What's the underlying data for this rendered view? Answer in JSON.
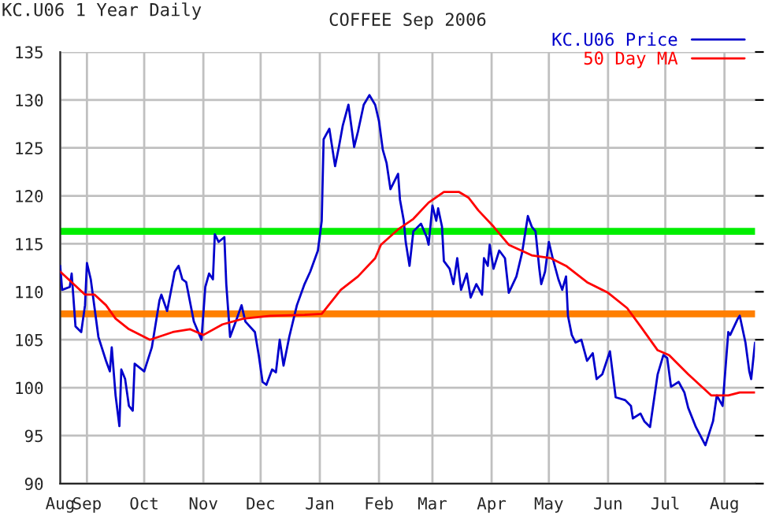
{
  "chart_data": {
    "type": "line",
    "title": "COFFEE Sep 2006",
    "annotations": [
      "KC.U06 1 Year Daily"
    ],
    "series": [
      {
        "name": "KC.U06 Price",
        "color": "#0000cc",
        "x": [
          "2005-08-18",
          "2005-08-19",
          "2005-08-23",
          "2005-08-24",
          "2005-08-26",
          "2005-08-29",
          "2005-08-31",
          "2005-09-01",
          "2005-09-03",
          "2005-09-07",
          "2005-09-11",
          "2005-09-13",
          "2005-09-14",
          "2005-09-16",
          "2005-09-18",
          "2005-09-19",
          "2005-09-21",
          "2005-09-23",
          "2005-09-25",
          "2005-09-26",
          "2005-10-01",
          "2005-10-05",
          "2005-10-09",
          "2005-10-10",
          "2005-10-13",
          "2005-10-17",
          "2005-10-19",
          "2005-10-21",
          "2005-10-23",
          "2005-10-27",
          "2005-10-31",
          "2005-11-02",
          "2005-11-04",
          "2005-11-06",
          "2005-11-07",
          "2005-11-09",
          "2005-11-12",
          "2005-11-13",
          "2005-11-15",
          "2005-11-18",
          "2005-11-21",
          "2005-11-23",
          "2005-11-28",
          "2005-11-30",
          "2005-12-02",
          "2005-12-04",
          "2005-12-07",
          "2005-12-09",
          "2005-12-11",
          "2005-12-13",
          "2005-12-16",
          "2005-12-20",
          "2005-12-24",
          "2005-12-27",
          "2005-12-31",
          "2006-01-02",
          "2006-01-03",
          "2006-01-06",
          "2006-01-09",
          "2006-01-11",
          "2006-01-13",
          "2006-01-16",
          "2006-01-19",
          "2006-01-21",
          "2006-01-24",
          "2006-01-27",
          "2006-01-30",
          "2006-02-01",
          "2006-02-03",
          "2006-02-05",
          "2006-02-07",
          "2006-02-09",
          "2006-02-11",
          "2006-02-12",
          "2006-02-14",
          "2006-02-15",
          "2006-02-17",
          "2006-02-19",
          "2006-02-23",
          "2006-02-26",
          "2006-02-27",
          "2006-03-01",
          "2006-03-03",
          "2006-03-04",
          "2006-03-06",
          "2006-03-07",
          "2006-03-10",
          "2006-03-12",
          "2006-03-14",
          "2006-03-16",
          "2006-03-19",
          "2006-03-21",
          "2006-03-24",
          "2006-03-27",
          "2006-03-28",
          "2006-03-30",
          "2006-03-31",
          "2006-04-02",
          "2006-04-05",
          "2006-04-08",
          "2006-04-10",
          "2006-04-14",
          "2006-04-17",
          "2006-04-20",
          "2006-04-22",
          "2006-04-24",
          "2006-04-26",
          "2006-04-27",
          "2006-04-29",
          "2006-05-01",
          "2006-05-03",
          "2006-05-06",
          "2006-05-08",
          "2006-05-10",
          "2006-05-11",
          "2006-05-13",
          "2006-05-15",
          "2006-05-18",
          "2006-05-21",
          "2006-05-24",
          "2006-05-26",
          "2006-05-29",
          "2006-06-02",
          "2006-06-05",
          "2006-06-10",
          "2006-06-13",
          "2006-06-14",
          "2006-06-18",
          "2006-06-20",
          "2006-06-23",
          "2006-06-27",
          "2006-06-30",
          "2006-07-02",
          "2006-07-04",
          "2006-07-08",
          "2006-07-11",
          "2006-07-13",
          "2006-07-17",
          "2006-07-22",
          "2006-07-26",
          "2006-07-28",
          "2006-07-31",
          "2006-08-03",
          "2006-08-04",
          "2006-08-08",
          "2006-08-09",
          "2006-08-12",
          "2006-08-14",
          "2006-08-15",
          "2006-08-17"
        ],
        "values": [
          112.7,
          110.2,
          110.5,
          111.9,
          106.4,
          105.8,
          108.6,
          113.0,
          111.3,
          105.3,
          102.8,
          101.7,
          104.2,
          99.2,
          96.0,
          101.9,
          100.9,
          98.1,
          97.6,
          102.5,
          101.7,
          104.2,
          109.1,
          109.7,
          108.0,
          112.1,
          112.7,
          111.3,
          111.0,
          106.9,
          105.0,
          110.5,
          111.9,
          111.3,
          116.0,
          115.2,
          115.7,
          110.8,
          105.3,
          106.9,
          108.6,
          106.9,
          105.8,
          103.4,
          100.6,
          100.3,
          101.9,
          101.6,
          105.0,
          102.3,
          105.3,
          108.6,
          110.8,
          112.1,
          114.3,
          117.4,
          125.9,
          127.0,
          123.1,
          125.1,
          127.3,
          129.5,
          125.1,
          126.7,
          129.5,
          130.5,
          129.5,
          127.8,
          124.8,
          123.4,
          120.7,
          121.5,
          122.3,
          119.6,
          117.4,
          115.2,
          112.7,
          116.3,
          117.1,
          115.7,
          114.9,
          119.0,
          117.4,
          118.7,
          116.8,
          113.2,
          112.4,
          110.8,
          113.5,
          110.2,
          111.9,
          109.4,
          110.8,
          109.7,
          113.5,
          112.7,
          114.9,
          112.4,
          114.3,
          113.5,
          109.9,
          111.6,
          114.1,
          117.9,
          116.8,
          116.3,
          112.4,
          110.8,
          112.1,
          115.2,
          113.5,
          111.3,
          110.2,
          111.6,
          107.5,
          105.5,
          104.7,
          105.0,
          102.8,
          103.6,
          100.9,
          101.4,
          103.8,
          99.0,
          98.7,
          98.1,
          96.8,
          97.3,
          96.5,
          95.9,
          101.4,
          103.4,
          103.1,
          100.1,
          100.6,
          99.5,
          97.9,
          95.9,
          94.0,
          96.5,
          99.2,
          98.1,
          105.8,
          105.5,
          107.2,
          107.5,
          104.7,
          101.7,
          100.9,
          104.7
        ]
      },
      {
        "name": "50 Day MA",
        "color": "#ff0000",
        "x": [
          "2005-08-18",
          "2005-08-24",
          "2005-08-31",
          "2005-09-05",
          "2005-09-11",
          "2005-09-16",
          "2005-09-23",
          "2005-10-04",
          "2005-10-16",
          "2005-10-25",
          "2005-11-01",
          "2005-11-11",
          "2005-11-22",
          "2005-12-06",
          "2005-12-24",
          "2006-01-02",
          "2006-01-12",
          "2006-01-21",
          "2006-01-30",
          "2006-02-02",
          "2006-02-11",
          "2006-02-19",
          "2006-02-27",
          "2006-03-07",
          "2006-03-15",
          "2006-03-20",
          "2006-03-25",
          "2006-04-02",
          "2006-04-10",
          "2006-04-22",
          "2006-05-02",
          "2006-05-10",
          "2006-05-21",
          "2006-06-01",
          "2006-06-11",
          "2006-06-18",
          "2006-06-27",
          "2006-07-03",
          "2006-07-13",
          "2006-07-25",
          "2006-08-03",
          "2006-08-09",
          "2006-08-17"
        ],
        "values": [
          112.1,
          111.0,
          109.7,
          109.7,
          108.6,
          107.2,
          106.1,
          105.0,
          105.8,
          106.1,
          105.5,
          106.6,
          107.2,
          107.5,
          107.6,
          107.7,
          110.2,
          111.6,
          113.5,
          114.9,
          116.5,
          117.6,
          119.3,
          120.4,
          120.4,
          119.8,
          118.5,
          116.8,
          114.9,
          113.8,
          113.5,
          112.7,
          111.0,
          109.9,
          108.3,
          106.4,
          103.9,
          103.4,
          101.4,
          99.2,
          99.2,
          99.5,
          99.5
        ]
      }
    ],
    "ref_lines": [
      {
        "axis": "y",
        "value": 116.3,
        "color": "#00ee00"
      },
      {
        "axis": "y",
        "value": 107.7,
        "color": "#ff7f00"
      }
    ],
    "xlim": [
      "2005-08-18",
      "2006-08-17"
    ],
    "xticks": [
      {
        "value": "2005-08-18",
        "label": "Aug"
      },
      {
        "value": "2005-09-01",
        "label": "Sep"
      },
      {
        "value": "2005-10-01",
        "label": "Oct"
      },
      {
        "value": "2005-11-01",
        "label": "Nov"
      },
      {
        "value": "2005-12-01",
        "label": "Dec"
      },
      {
        "value": "2006-01-01",
        "label": "Jan"
      },
      {
        "value": "2006-02-01",
        "label": "Feb"
      },
      {
        "value": "2006-03-01",
        "label": "Mar"
      },
      {
        "value": "2006-04-01",
        "label": "Apr"
      },
      {
        "value": "2006-05-01",
        "label": "May"
      },
      {
        "value": "2006-06-01",
        "label": "Jun"
      },
      {
        "value": "2006-07-01",
        "label": "Jul"
      },
      {
        "value": "2006-08-01",
        "label": "Aug"
      }
    ],
    "ylim": [
      90,
      135
    ],
    "yticks": [
      90,
      95,
      100,
      105,
      110,
      115,
      120,
      125,
      130,
      135
    ],
    "grid": true,
    "legend": "top right",
    "marker": "none",
    "line_style": "solid"
  }
}
